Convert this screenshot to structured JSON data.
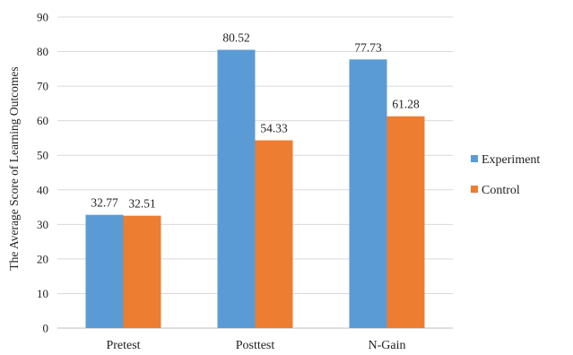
{
  "chart_data": {
    "type": "bar",
    "title": "",
    "xlabel": "",
    "ylabel": "The Average Score of Learning Outcomes",
    "ylim": [
      0,
      90
    ],
    "yticks": [
      0,
      10,
      20,
      30,
      40,
      50,
      60,
      70,
      80,
      90
    ],
    "grid": true,
    "legend_position": "right",
    "categories": [
      "Pretest",
      "Posttest",
      "N-Gain"
    ],
    "series": [
      {
        "name": "Experiment",
        "color": "#5B9BD5",
        "values": [
          32.77,
          80.52,
          77.73
        ],
        "labels": [
          "32.77",
          "80.52",
          "77.73"
        ]
      },
      {
        "name": "Control",
        "color": "#ED7D31",
        "values": [
          32.51,
          54.33,
          61.28
        ],
        "labels": [
          "32.51",
          "54.33",
          "61.28"
        ]
      }
    ]
  }
}
